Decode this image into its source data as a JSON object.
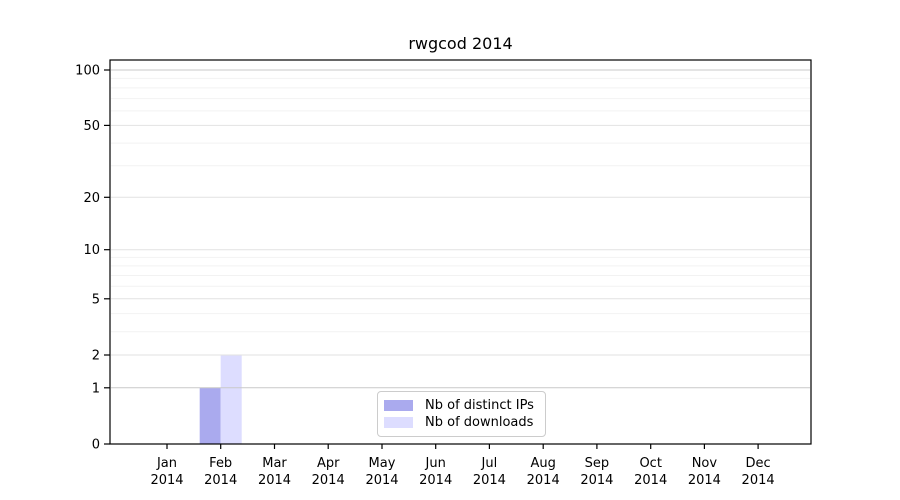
{
  "chart_data": {
    "type": "bar",
    "title": "rwgcod 2014",
    "x_ticks": [
      {
        "month": "Jan",
        "year": "2014"
      },
      {
        "month": "Feb",
        "year": "2014"
      },
      {
        "month": "Mar",
        "year": "2014"
      },
      {
        "month": "Apr",
        "year": "2014"
      },
      {
        "month": "May",
        "year": "2014"
      },
      {
        "month": "Jun",
        "year": "2014"
      },
      {
        "month": "Jul",
        "year": "2014"
      },
      {
        "month": "Aug",
        "year": "2014"
      },
      {
        "month": "Sep",
        "year": "2014"
      },
      {
        "month": "Oct",
        "year": "2014"
      },
      {
        "month": "Nov",
        "year": "2014"
      },
      {
        "month": "Dec",
        "year": "2014"
      }
    ],
    "series": [
      {
        "name": "Nb of distinct IPs",
        "color": "#aaaaee",
        "values": [
          0,
          1,
          0,
          0,
          0,
          0,
          0,
          0,
          0,
          0,
          0,
          0
        ]
      },
      {
        "name": "Nb of downloads",
        "color": "#ddddff",
        "values": [
          0,
          2,
          0,
          0,
          0,
          0,
          0,
          0,
          0,
          0,
          0,
          0
        ]
      }
    ],
    "y_axis": {
      "scale": "log1p",
      "lim": [
        0,
        100
      ],
      "major_ticks": [
        0,
        1,
        2,
        5,
        10,
        20,
        50,
        100
      ],
      "minor_gridlines": [
        3,
        4,
        6,
        7,
        8,
        9,
        30,
        40,
        60,
        70,
        80,
        90
      ],
      "emphasized_gridlines": [
        1,
        100
      ]
    },
    "grid": "horizontal",
    "legend": {
      "position": "lower center"
    },
    "colors": {
      "major_grid": "#e2e2e2",
      "minor_grid": "#f2f2f2",
      "emphasized_grid": "#c9c9c9",
      "axis": "#000000",
      "text": "#000000",
      "background": "#ffffff"
    }
  }
}
